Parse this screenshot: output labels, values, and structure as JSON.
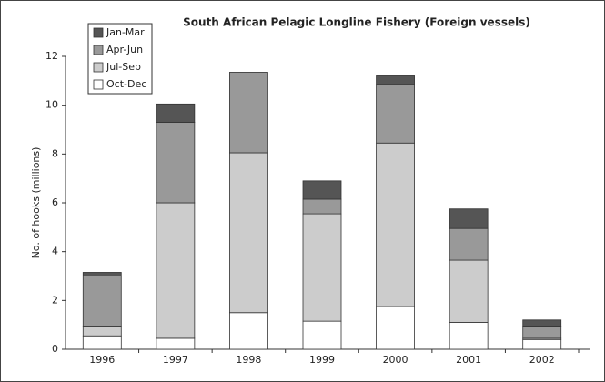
{
  "chart_data": {
    "type": "stacked_bar",
    "title": "South African Pelagic Longline Fishery (Foreign vessels)",
    "y_label": "No. of hooks (millions)",
    "categories": [
      "1996",
      "1997",
      "1998",
      "1999",
      "2000",
      "2001",
      "2002"
    ],
    "series": [
      {
        "name": "Jan-Mar",
        "color": "#555555",
        "values": [
          0.15,
          0.75,
          0,
          0.75,
          0.35,
          0.8,
          0.25
        ]
      },
      {
        "name": "Apr-Jun",
        "color": "#999999",
        "values": [
          2.05,
          3.3,
          3.3,
          0.6,
          2.4,
          1.3,
          0.5
        ]
      },
      {
        "name": "Jul-Sep",
        "color": "#cccccc",
        "values": [
          0.4,
          5.55,
          6.55,
          4.4,
          6.7,
          2.55,
          0.05
        ]
      },
      {
        "name": "Oct-Dec",
        "color": "#ffffff",
        "values": [
          0.55,
          0.45,
          1.5,
          1.15,
          1.75,
          1.1,
          0.4
        ]
      }
    ],
    "ylim": [
      0,
      12
    ],
    "yticks": [
      0,
      2,
      4,
      6,
      8,
      10,
      12
    ]
  }
}
